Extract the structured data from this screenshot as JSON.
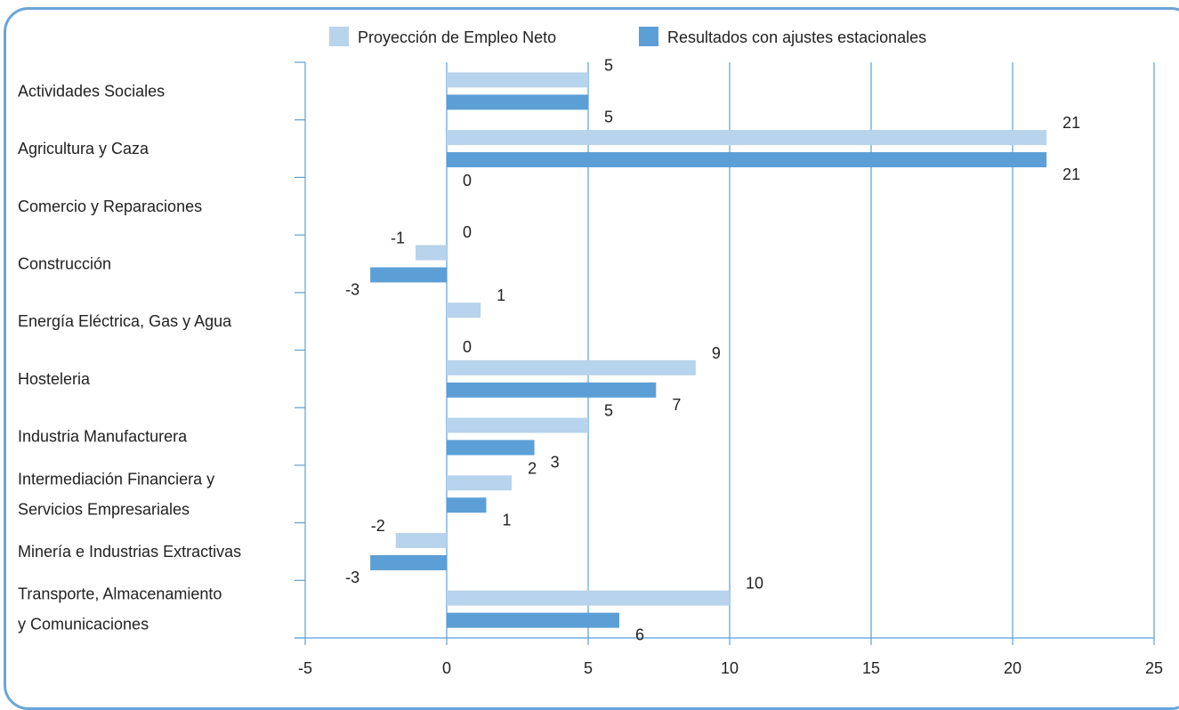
{
  "chart_data": {
    "type": "bar",
    "orientation": "horizontal",
    "categories": [
      [
        "Actividades Sociales"
      ],
      [
        "Agricultura y Caza"
      ],
      [
        "Comercio y Reparaciones"
      ],
      [
        "Construcción"
      ],
      [
        "Energía Eléctrica, Gas y Agua"
      ],
      [
        "Hosteleria"
      ],
      [
        "Industria Manufacturera"
      ],
      [
        "Intermediación Financiera y",
        "Servicios Empresariales"
      ],
      [
        "Minería e Industrias Extractivas"
      ],
      [
        "Transporte, Almacenamiento",
        "y Comunicaciones"
      ]
    ],
    "series": [
      {
        "name": "Proyección de Empleo Neto",
        "color": "#b8d3ec",
        "values": [
          5,
          21.2,
          0,
          -1.1,
          1.2,
          8.8,
          5,
          2.3,
          -1.8,
          10
        ],
        "labels": [
          "5",
          "21",
          "0",
          "-1",
          "1",
          "9",
          "5",
          "2",
          "-2",
          "10"
        ]
      },
      {
        "name": "Resultados con ajustes estacionales",
        "color": "#5b9fd6",
        "values": [
          5,
          21.2,
          0,
          -2.7,
          0,
          7.4,
          3.1,
          1.4,
          -2.7,
          6.1
        ],
        "labels": [
          "5",
          "21",
          "0",
          "-3",
          "0",
          "7",
          "3",
          "1",
          "-3",
          "6"
        ]
      }
    ],
    "xlim": [
      -5,
      25
    ],
    "xticks": [
      "-5",
      "0",
      "5",
      "10",
      "15",
      "20",
      "25"
    ],
    "grid": true,
    "legend_position": "top",
    "axis_color": "#5b9fd6"
  }
}
